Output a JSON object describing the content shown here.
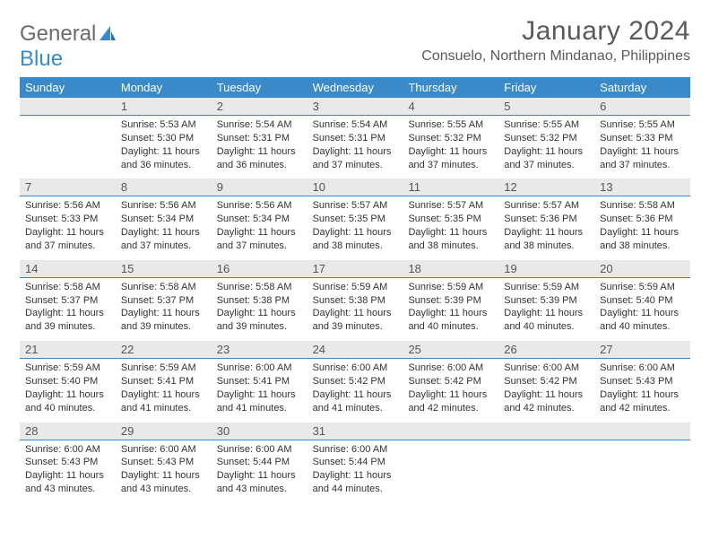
{
  "brand": {
    "part1": "General",
    "part2": "Blue"
  },
  "title": "January 2024",
  "location": "Consuelo, Northern Mindanao, Philippines",
  "weekdays": [
    "Sunday",
    "Monday",
    "Tuesday",
    "Wednesday",
    "Thursday",
    "Friday",
    "Saturday"
  ],
  "colors": {
    "header_bar": "#3a8ac9",
    "daynum_bg": "#e9e9e9",
    "text": "#333333",
    "title_text": "#5a5a5a",
    "row_divider": "#3a8ac9"
  },
  "typography": {
    "month_title_pt": 30,
    "location_pt": 16,
    "weekday_pt": 13,
    "daynum_pt": 13,
    "detail_pt": 11
  },
  "first_weekday_index": 1,
  "days": [
    {
      "n": 1,
      "sunrise": "5:53 AM",
      "sunset": "5:30 PM",
      "daylight": "11 hours and 36 minutes."
    },
    {
      "n": 2,
      "sunrise": "5:54 AM",
      "sunset": "5:31 PM",
      "daylight": "11 hours and 36 minutes."
    },
    {
      "n": 3,
      "sunrise": "5:54 AM",
      "sunset": "5:31 PM",
      "daylight": "11 hours and 37 minutes."
    },
    {
      "n": 4,
      "sunrise": "5:55 AM",
      "sunset": "5:32 PM",
      "daylight": "11 hours and 37 minutes."
    },
    {
      "n": 5,
      "sunrise": "5:55 AM",
      "sunset": "5:32 PM",
      "daylight": "11 hours and 37 minutes."
    },
    {
      "n": 6,
      "sunrise": "5:55 AM",
      "sunset": "5:33 PM",
      "daylight": "11 hours and 37 minutes."
    },
    {
      "n": 7,
      "sunrise": "5:56 AM",
      "sunset": "5:33 PM",
      "daylight": "11 hours and 37 minutes."
    },
    {
      "n": 8,
      "sunrise": "5:56 AM",
      "sunset": "5:34 PM",
      "daylight": "11 hours and 37 minutes."
    },
    {
      "n": 9,
      "sunrise": "5:56 AM",
      "sunset": "5:34 PM",
      "daylight": "11 hours and 37 minutes."
    },
    {
      "n": 10,
      "sunrise": "5:57 AM",
      "sunset": "5:35 PM",
      "daylight": "11 hours and 38 minutes."
    },
    {
      "n": 11,
      "sunrise": "5:57 AM",
      "sunset": "5:35 PM",
      "daylight": "11 hours and 38 minutes."
    },
    {
      "n": 12,
      "sunrise": "5:57 AM",
      "sunset": "5:36 PM",
      "daylight": "11 hours and 38 minutes."
    },
    {
      "n": 13,
      "sunrise": "5:58 AM",
      "sunset": "5:36 PM",
      "daylight": "11 hours and 38 minutes."
    },
    {
      "n": 14,
      "sunrise": "5:58 AM",
      "sunset": "5:37 PM",
      "daylight": "11 hours and 39 minutes."
    },
    {
      "n": 15,
      "sunrise": "5:58 AM",
      "sunset": "5:37 PM",
      "daylight": "11 hours and 39 minutes."
    },
    {
      "n": 16,
      "sunrise": "5:58 AM",
      "sunset": "5:38 PM",
      "daylight": "11 hours and 39 minutes."
    },
    {
      "n": 17,
      "sunrise": "5:59 AM",
      "sunset": "5:38 PM",
      "daylight": "11 hours and 39 minutes."
    },
    {
      "n": 18,
      "sunrise": "5:59 AM",
      "sunset": "5:39 PM",
      "daylight": "11 hours and 40 minutes."
    },
    {
      "n": 19,
      "sunrise": "5:59 AM",
      "sunset": "5:39 PM",
      "daylight": "11 hours and 40 minutes."
    },
    {
      "n": 20,
      "sunrise": "5:59 AM",
      "sunset": "5:40 PM",
      "daylight": "11 hours and 40 minutes."
    },
    {
      "n": 21,
      "sunrise": "5:59 AM",
      "sunset": "5:40 PM",
      "daylight": "11 hours and 40 minutes."
    },
    {
      "n": 22,
      "sunrise": "5:59 AM",
      "sunset": "5:41 PM",
      "daylight": "11 hours and 41 minutes."
    },
    {
      "n": 23,
      "sunrise": "6:00 AM",
      "sunset": "5:41 PM",
      "daylight": "11 hours and 41 minutes."
    },
    {
      "n": 24,
      "sunrise": "6:00 AM",
      "sunset": "5:42 PM",
      "daylight": "11 hours and 41 minutes."
    },
    {
      "n": 25,
      "sunrise": "6:00 AM",
      "sunset": "5:42 PM",
      "daylight": "11 hours and 42 minutes."
    },
    {
      "n": 26,
      "sunrise": "6:00 AM",
      "sunset": "5:42 PM",
      "daylight": "11 hours and 42 minutes."
    },
    {
      "n": 27,
      "sunrise": "6:00 AM",
      "sunset": "5:43 PM",
      "daylight": "11 hours and 42 minutes."
    },
    {
      "n": 28,
      "sunrise": "6:00 AM",
      "sunset": "5:43 PM",
      "daylight": "11 hours and 43 minutes."
    },
    {
      "n": 29,
      "sunrise": "6:00 AM",
      "sunset": "5:43 PM",
      "daylight": "11 hours and 43 minutes."
    },
    {
      "n": 30,
      "sunrise": "6:00 AM",
      "sunset": "5:44 PM",
      "daylight": "11 hours and 43 minutes."
    },
    {
      "n": 31,
      "sunrise": "6:00 AM",
      "sunset": "5:44 PM",
      "daylight": "11 hours and 44 minutes."
    }
  ],
  "labels": {
    "sunrise": "Sunrise:",
    "sunset": "Sunset:",
    "daylight": "Daylight:"
  }
}
